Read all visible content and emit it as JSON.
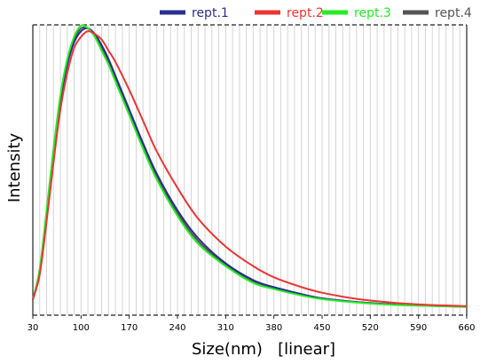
{
  "chart_data": {
    "type": "line",
    "title": "",
    "xlabel": "Size(nm)   [linear]",
    "ylabel": "Intensity",
    "xlim": [
      30,
      660
    ],
    "ylim": [
      0,
      1
    ],
    "x_ticks": [
      30,
      100,
      170,
      240,
      310,
      380,
      450,
      520,
      590,
      660
    ],
    "x_tick_labels": [
      "30",
      "100",
      "170",
      "240",
      "310",
      "380",
      "450",
      "520",
      "590",
      "660"
    ],
    "grid": "vertical minor lines every 10 nm",
    "legend_position": "top-right",
    "series": [
      {
        "name": "rept.1",
        "color": "#2b2f8f",
        "x": [
          30,
          40,
          50,
          60,
          70,
          80,
          90,
          100,
          110,
          120,
          130,
          140,
          150,
          170,
          190,
          210,
          240,
          270,
          310,
          350,
          380,
          420,
          450,
          500,
          550,
          600,
          660
        ],
        "y": [
          0.03,
          0.13,
          0.33,
          0.55,
          0.74,
          0.87,
          0.95,
          0.99,
          1.0,
          0.98,
          0.94,
          0.89,
          0.83,
          0.71,
          0.59,
          0.48,
          0.35,
          0.25,
          0.16,
          0.1,
          0.075,
          0.05,
          0.035,
          0.022,
          0.014,
          0.009,
          0.005
        ]
      },
      {
        "name": "rept.2",
        "color": "#ee3333",
        "x": [
          30,
          40,
          50,
          60,
          70,
          80,
          90,
          100,
          110,
          120,
          130,
          140,
          150,
          170,
          190,
          210,
          240,
          270,
          310,
          350,
          380,
          420,
          450,
          500,
          550,
          600,
          660
        ],
        "y": [
          0.03,
          0.12,
          0.31,
          0.52,
          0.71,
          0.84,
          0.93,
          0.97,
          0.99,
          0.98,
          0.96,
          0.92,
          0.88,
          0.78,
          0.67,
          0.56,
          0.43,
          0.32,
          0.22,
          0.15,
          0.11,
          0.075,
          0.055,
          0.033,
          0.02,
          0.012,
          0.007
        ]
      },
      {
        "name": "rept.3",
        "color": "#22ee22",
        "x": [
          30,
          40,
          50,
          60,
          70,
          80,
          90,
          100,
          110,
          120,
          130,
          140,
          150,
          170,
          190,
          210,
          240,
          270,
          310,
          350,
          380,
          420,
          450,
          500,
          550,
          600,
          660
        ],
        "y": [
          0.03,
          0.14,
          0.35,
          0.57,
          0.76,
          0.89,
          0.97,
          1.01,
          1.0,
          0.97,
          0.92,
          0.87,
          0.81,
          0.69,
          0.57,
          0.46,
          0.33,
          0.23,
          0.15,
          0.09,
          0.068,
          0.045,
          0.032,
          0.02,
          0.012,
          0.008,
          0.004
        ]
      },
      {
        "name": "rept.4",
        "color": "#555555",
        "x": [
          30,
          40,
          50,
          60,
          70,
          80,
          90,
          100,
          110,
          120,
          130,
          140,
          150,
          170,
          190,
          210,
          240,
          270,
          310,
          350,
          380,
          420,
          450,
          500,
          550,
          600,
          660
        ],
        "y": [
          0.03,
          0.135,
          0.34,
          0.56,
          0.75,
          0.88,
          0.96,
          1.0,
          1.0,
          0.975,
          0.93,
          0.88,
          0.82,
          0.7,
          0.58,
          0.47,
          0.34,
          0.24,
          0.155,
          0.095,
          0.072,
          0.048,
          0.034,
          0.021,
          0.013,
          0.0085,
          0.0045
        ]
      }
    ]
  }
}
